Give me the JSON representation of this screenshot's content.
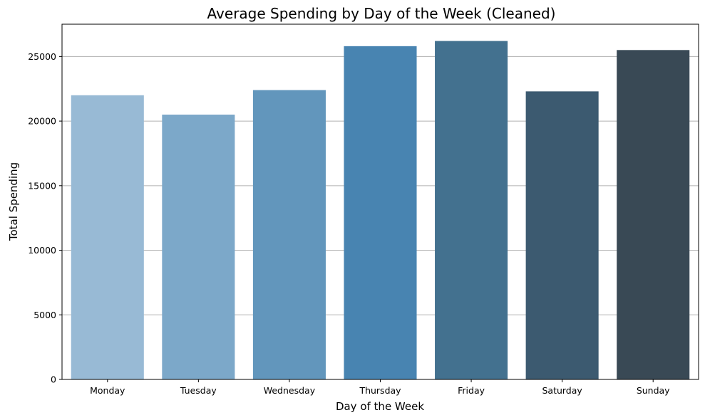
{
  "chart_data": {
    "type": "bar",
    "title": "Average Spending by Day of the Week (Cleaned)",
    "xlabel": "Day of the Week",
    "ylabel": "Total Spending",
    "categories": [
      "Monday",
      "Tuesday",
      "Wednesday",
      "Thursday",
      "Friday",
      "Saturday",
      "Sunday"
    ],
    "values": [
      22000,
      20500,
      22400,
      25800,
      26200,
      22300,
      25500
    ],
    "ylim": [
      0,
      27500
    ],
    "yticks": [
      0,
      5000,
      10000,
      15000,
      20000,
      25000
    ],
    "ytick_labels": [
      "0",
      "5000",
      "10000",
      "15000",
      "20000",
      "25000"
    ],
    "grid": "y",
    "legend": "none",
    "colors": [
      "#98bad5",
      "#7ca8c9",
      "#6296bc",
      "#4884b1",
      "#43718f",
      "#3c5a70",
      "#394955"
    ],
    "grid_color": "#b0b0b0"
  }
}
